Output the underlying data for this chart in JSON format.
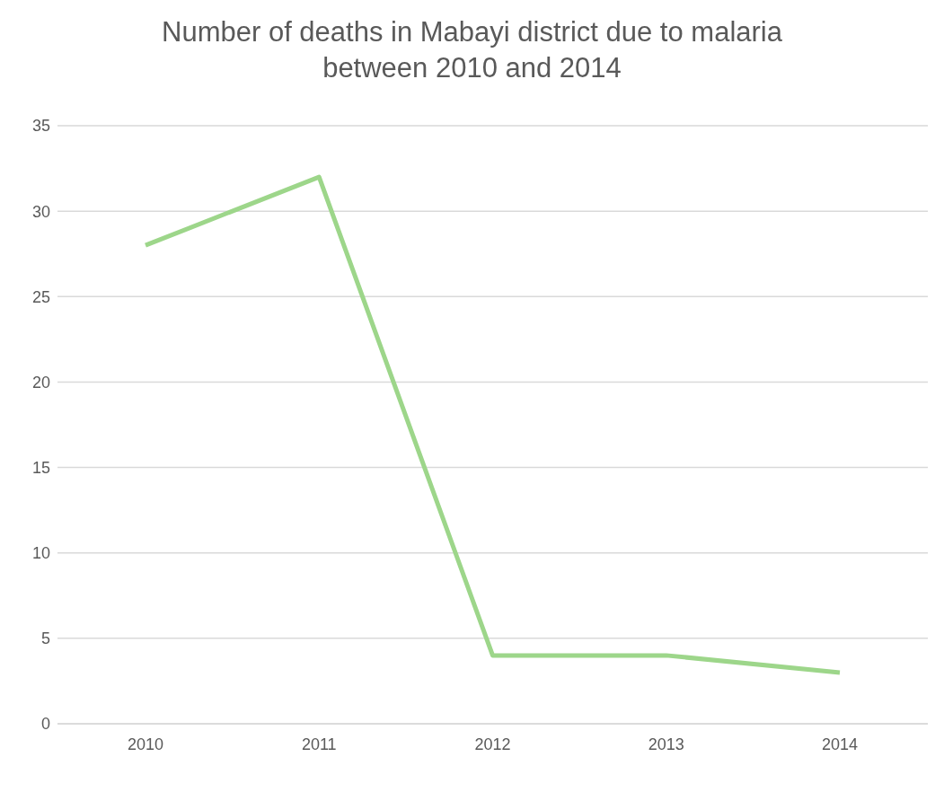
{
  "chart_data": {
    "type": "line",
    "title": "Number of deaths in Mabayi district due to malaria between 2010 and 2014",
    "categories": [
      "2010",
      "2011",
      "2012",
      "2013",
      "2014"
    ],
    "series": [
      {
        "color": "#9dd68a",
        "values": [
          28,
          32,
          4,
          4,
          3
        ]
      }
    ],
    "ylim": [
      0,
      35
    ],
    "yticks": [
      0,
      5,
      10,
      15,
      20,
      25,
      30,
      35
    ],
    "grid": "y",
    "marker": "none",
    "line_style": "solid"
  }
}
